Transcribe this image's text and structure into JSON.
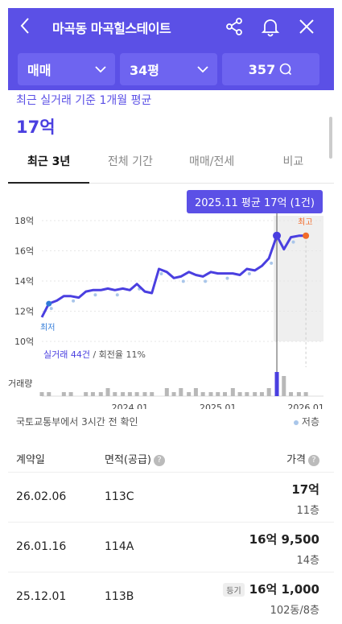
{
  "header": {
    "title": "마곡동 마곡힐스테이트",
    "colors": {
      "brand": "#5b50e6",
      "filter_bg": "#6e64f0"
    },
    "icons": [
      "back-icon",
      "share-icon",
      "bell-icon",
      "close-icon"
    ]
  },
  "filters": {
    "deal_type": "매매",
    "area": "34평",
    "comments": "357"
  },
  "summary": {
    "subtitle": "최근 실거래 기준 1개월 평균",
    "price": "17억"
  },
  "tabs": [
    "최근 3년",
    "전체 기간",
    "매매/전세",
    "비교"
  ],
  "chart": {
    "tooltip": "2025.11 평균 17억 (1건)",
    "min_label": "최저",
    "max_label": "최고",
    "stats_count": "실거래 44건",
    "stats_turnover": " / 회전율 11%",
    "volume_label": "거래량"
  },
  "chart_data": {
    "type": "line",
    "ylabel": "",
    "y_ticks": [
      "18억",
      "16억",
      "14억",
      "12억",
      "10억"
    ],
    "ylim": [
      10,
      18
    ],
    "x_ticks": [
      "2024.01",
      "2025.01",
      "2026.01"
    ],
    "series": [
      {
        "values_x": [
          2023.0,
          2023.08,
          2023.17,
          2023.25,
          2023.33,
          2023.42,
          2023.5,
          2023.58,
          2023.67,
          2023.75,
          2023.83,
          2023.92,
          2024.0,
          2024.08,
          2024.17,
          2024.25,
          2024.33,
          2024.42,
          2024.5,
          2024.58,
          2024.67,
          2024.75,
          2024.83,
          2024.92,
          2025.0,
          2025.08,
          2025.17,
          2025.25,
          2025.33,
          2025.42,
          2025.5,
          2025.58,
          2025.67,
          2025.75,
          2025.83,
          2025.92,
          2026.0
        ],
        "values_y": [
          11.6,
          12.5,
          12.7,
          13.0,
          13.0,
          12.9,
          13.3,
          13.4,
          13.4,
          13.5,
          13.4,
          13.5,
          13.4,
          13.8,
          13.3,
          13.2,
          14.8,
          14.6,
          14.2,
          14.3,
          14.6,
          14.4,
          14.3,
          14.6,
          14.5,
          14.5,
          14.5,
          14.4,
          14.8,
          14.7,
          15.0,
          15.5,
          17.0,
          16.1,
          16.9,
          17.0,
          17.0
        ]
      }
    ],
    "volume": [
      1,
      1,
      0,
      1,
      1,
      0,
      1,
      1,
      1,
      2,
      1,
      1,
      1,
      1,
      1,
      1,
      0,
      2,
      1,
      2,
      1,
      2,
      1,
      1,
      1,
      1,
      2,
      1,
      1,
      1,
      1,
      2,
      6,
      5,
      1,
      1,
      1
    ]
  },
  "footer": {
    "source": "국토교통부에서 3시간 전 확인",
    "legend": "저층"
  },
  "table": {
    "headers": {
      "date": "계약일",
      "area": "면적(공급)",
      "price": "가격"
    },
    "rows": [
      {
        "date": "26.02.06",
        "area": "113C",
        "price": "17억",
        "floor": "11층",
        "badge": ""
      },
      {
        "date": "26.01.16",
        "area": "114A",
        "price": "16억 9,500",
        "floor": "14층",
        "badge": ""
      },
      {
        "date": "25.12.01",
        "area": "113B",
        "price": "16억 1,000",
        "floor": "102동/8층",
        "badge": "등기"
      }
    ]
  }
}
